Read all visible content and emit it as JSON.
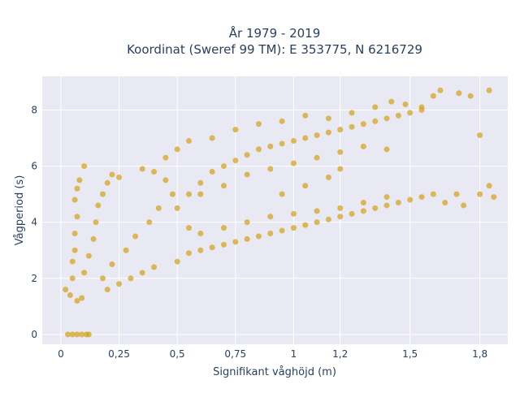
{
  "chart_data": {
    "type": "scatter",
    "title_line1": "År 1979 - 2019",
    "title_line2": "Koordinat (Sweref 99 TM): E 353775, N 6216729",
    "xlabel": "Signifikant våghöjd (m)",
    "ylabel": "Vågperiod (s)",
    "xlim": [
      -0.08,
      1.92
    ],
    "ylim": [
      -0.35,
      9.2
    ],
    "x_ticks": [
      {
        "value": 0,
        "label": "0"
      },
      {
        "value": 0.25,
        "label": "0,25"
      },
      {
        "value": 0.5,
        "label": "0,5"
      },
      {
        "value": 0.75,
        "label": "0,75"
      },
      {
        "value": 1.0,
        "label": "1"
      },
      {
        "value": 1.2,
        "label": "1,2"
      },
      {
        "value": 1.5,
        "label": "1,5"
      },
      {
        "value": 1.8,
        "label": "1,8"
      }
    ],
    "y_ticks": [
      {
        "value": 0,
        "label": "0"
      },
      {
        "value": 2,
        "label": "2"
      },
      {
        "value": 4,
        "label": "4"
      },
      {
        "value": 6,
        "label": "6"
      },
      {
        "value": 8,
        "label": "8"
      }
    ],
    "grid": true,
    "legend": "none",
    "colors": {
      "marker": "#d4a421",
      "plot_bg": "#e9e9f3",
      "grid": "#ffffff",
      "text": "#2a3f5f"
    },
    "series": [
      {
        "points": [
          [
            0.03,
            0
          ],
          [
            0.05,
            0
          ],
          [
            0.07,
            0
          ],
          [
            0.09,
            0
          ],
          [
            0.11,
            0
          ],
          [
            0.12,
            0
          ],
          [
            0.02,
            1.6
          ],
          [
            0.04,
            1.4
          ],
          [
            0.05,
            2.0
          ],
          [
            0.05,
            2.6
          ],
          [
            0.06,
            3.0
          ],
          [
            0.06,
            3.6
          ],
          [
            0.07,
            4.2
          ],
          [
            0.06,
            4.8
          ],
          [
            0.07,
            5.2
          ],
          [
            0.08,
            5.5
          ],
          [
            0.07,
            1.2
          ],
          [
            0.09,
            1.3
          ],
          [
            0.1,
            6.0
          ],
          [
            0.1,
            2.2
          ],
          [
            0.12,
            2.8
          ],
          [
            0.14,
            3.4
          ],
          [
            0.15,
            4.0
          ],
          [
            0.16,
            4.6
          ],
          [
            0.18,
            5.0
          ],
          [
            0.2,
            5.4
          ],
          [
            0.22,
            5.7
          ],
          [
            0.25,
            5.6
          ],
          [
            0.2,
            1.6
          ],
          [
            0.25,
            1.8
          ],
          [
            0.3,
            2.0
          ],
          [
            0.35,
            2.2
          ],
          [
            0.4,
            2.4
          ],
          [
            0.18,
            2.0
          ],
          [
            0.22,
            2.5
          ],
          [
            0.28,
            3.0
          ],
          [
            0.32,
            3.5
          ],
          [
            0.38,
            4.0
          ],
          [
            0.42,
            4.5
          ],
          [
            0.48,
            5.0
          ],
          [
            0.45,
            5.5
          ],
          [
            0.4,
            5.8
          ],
          [
            0.35,
            5.9
          ],
          [
            0.5,
            2.6
          ],
          [
            0.55,
            2.9
          ],
          [
            0.6,
            3.0
          ],
          [
            0.65,
            3.1
          ],
          [
            0.7,
            3.2
          ],
          [
            0.75,
            3.3
          ],
          [
            0.8,
            3.4
          ],
          [
            0.85,
            3.5
          ],
          [
            0.9,
            3.6
          ],
          [
            0.95,
            3.7
          ],
          [
            1.0,
            3.8
          ],
          [
            1.05,
            3.9
          ],
          [
            1.1,
            4.0
          ],
          [
            1.15,
            4.1
          ],
          [
            1.2,
            4.2
          ],
          [
            1.25,
            4.3
          ],
          [
            1.3,
            4.4
          ],
          [
            1.35,
            4.5
          ],
          [
            1.4,
            4.6
          ],
          [
            1.45,
            4.7
          ],
          [
            1.5,
            4.8
          ],
          [
            1.55,
            4.9
          ],
          [
            1.6,
            5.0
          ],
          [
            1.65,
            4.7
          ],
          [
            1.7,
            5.0
          ],
          [
            1.73,
            4.6
          ],
          [
            1.8,
            5.0
          ],
          [
            1.84,
            5.3
          ],
          [
            1.86,
            4.9
          ],
          [
            0.55,
            3.8
          ],
          [
            0.6,
            3.6
          ],
          [
            0.7,
            3.8
          ],
          [
            0.8,
            4.0
          ],
          [
            0.9,
            4.2
          ],
          [
            1.0,
            4.3
          ],
          [
            1.1,
            4.4
          ],
          [
            1.2,
            4.5
          ],
          [
            1.3,
            4.7
          ],
          [
            1.4,
            4.9
          ],
          [
            0.5,
            4.5
          ],
          [
            0.55,
            5.0
          ],
          [
            0.6,
            5.4
          ],
          [
            0.65,
            5.8
          ],
          [
            0.7,
            6.0
          ],
          [
            0.75,
            6.2
          ],
          [
            0.8,
            6.4
          ],
          [
            0.85,
            6.6
          ],
          [
            0.9,
            6.7
          ],
          [
            0.95,
            6.8
          ],
          [
            1.0,
            6.9
          ],
          [
            1.05,
            7.0
          ],
          [
            1.1,
            7.1
          ],
          [
            1.15,
            7.2
          ],
          [
            1.2,
            7.3
          ],
          [
            1.25,
            7.4
          ],
          [
            1.3,
            7.5
          ],
          [
            1.35,
            7.6
          ],
          [
            1.4,
            7.7
          ],
          [
            1.45,
            7.8
          ],
          [
            1.5,
            7.9
          ],
          [
            1.55,
            8.0
          ],
          [
            1.6,
            8.5
          ],
          [
            1.63,
            8.7
          ],
          [
            1.71,
            8.6
          ],
          [
            1.76,
            8.5
          ],
          [
            1.84,
            8.7
          ],
          [
            1.8,
            7.1
          ],
          [
            0.6,
            5.0
          ],
          [
            0.7,
            5.3
          ],
          [
            0.8,
            5.7
          ],
          [
            0.9,
            5.9
          ],
          [
            1.0,
            6.1
          ],
          [
            1.1,
            6.3
          ],
          [
            1.2,
            6.5
          ],
          [
            1.3,
            6.7
          ],
          [
            1.4,
            6.6
          ],
          [
            1.05,
            5.3
          ],
          [
            1.15,
            5.6
          ],
          [
            1.2,
            5.9
          ],
          [
            0.95,
            5.0
          ],
          [
            0.45,
            6.3
          ],
          [
            0.5,
            6.6
          ],
          [
            0.55,
            6.9
          ],
          [
            0.65,
            7.0
          ],
          [
            0.75,
            7.3
          ],
          [
            0.85,
            7.5
          ],
          [
            0.95,
            7.6
          ],
          [
            1.05,
            7.8
          ],
          [
            1.15,
            7.7
          ],
          [
            1.25,
            7.9
          ],
          [
            1.35,
            8.1
          ],
          [
            1.42,
            8.3
          ],
          [
            1.48,
            8.2
          ],
          [
            1.55,
            8.1
          ]
        ]
      }
    ]
  }
}
